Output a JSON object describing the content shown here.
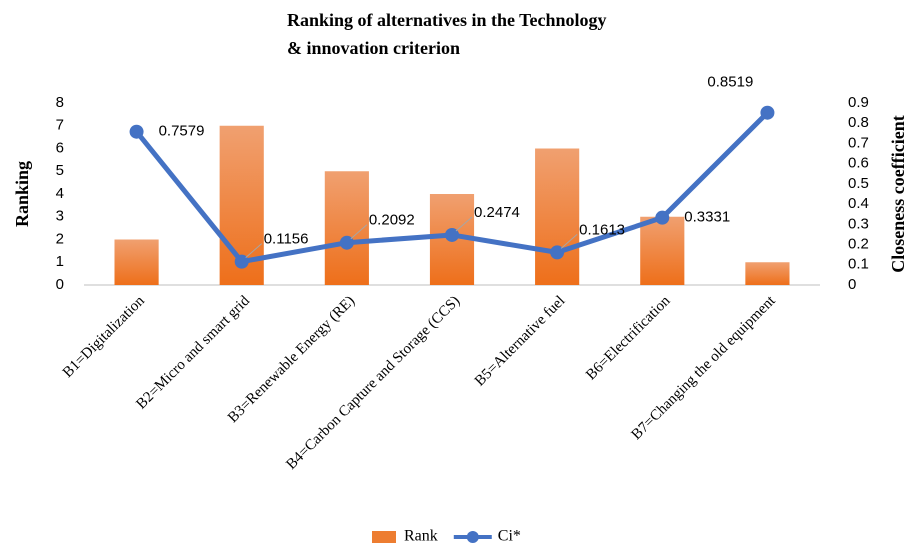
{
  "chart_data": {
    "type": "bar",
    "title": [
      "Ranking of alternatives in the Technology",
      "& innovation criterion"
    ],
    "ylabel": "Ranking",
    "y2label": "Closeness coefficient",
    "categories": [
      "B1=Digitalization",
      "B2=Micro and smart grid",
      "B3=Renewable Energy (RE)",
      "B4=Carbon Capture and Storage (CCS)",
      "B5=Alternative fuel",
      "B6=Electrification",
      "B7=Changing the old equipment"
    ],
    "series": [
      {
        "name": "Rank",
        "type": "bar",
        "color": "#ed7d31",
        "values": [
          2,
          7,
          5,
          4,
          6,
          3,
          1
        ]
      },
      {
        "name": "Ci*",
        "type": "line",
        "axis": "y2",
        "color": "#4472c4",
        "values": [
          0.7579,
          0.1156,
          0.2092,
          0.2474,
          0.1613,
          0.3331,
          0.8519
        ]
      }
    ],
    "ylim": [
      0,
      8
    ],
    "yticks": [
      0,
      1,
      2,
      3,
      4,
      5,
      6,
      7,
      8
    ],
    "y2lim": [
      0,
      0.9
    ],
    "y2ticks": [
      0,
      0.1,
      0.2,
      0.3,
      0.4,
      0.5,
      0.6,
      0.7,
      0.8,
      0.9
    ],
    "legend": "bottom",
    "grid": false
  }
}
